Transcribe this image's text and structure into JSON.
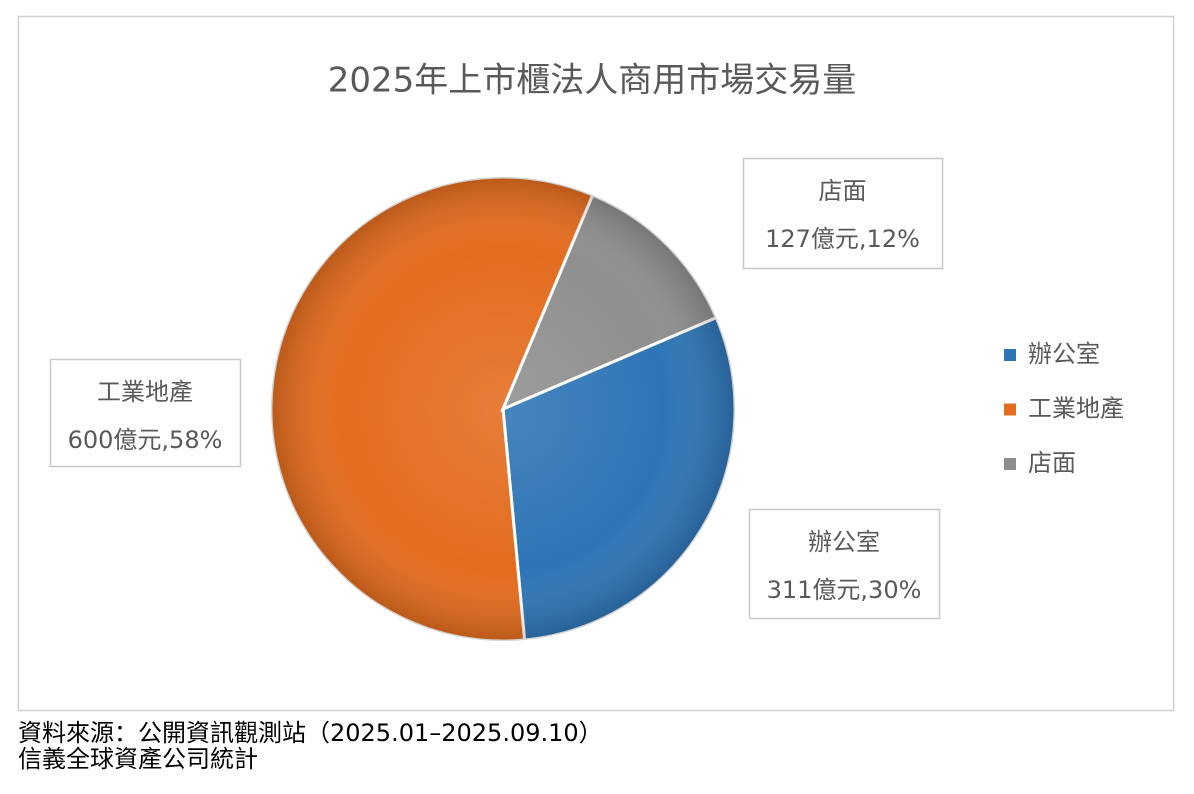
{
  "chart_data": {
    "type": "pie",
    "title": "2025年上市櫃法人商用市場交易量",
    "categories": [
      "辦公室",
      "工業地產",
      "店面"
    ],
    "values": [
      311,
      600,
      127
    ],
    "value_labels": [
      "311億元,30%",
      "600億元,58%",
      "127億元,12%"
    ],
    "colors": [
      "#2e75b6",
      "#e36c1e",
      "#8f8f8f"
    ],
    "legend": "right",
    "source": [
      "資料來源：公開資訊觀測站（2025.01–2025.09.10）",
      "信義全球資產公司統計"
    ]
  }
}
